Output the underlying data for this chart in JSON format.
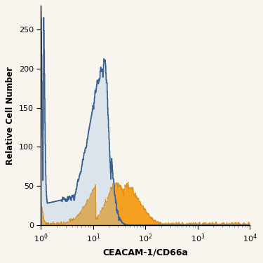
{
  "title": "",
  "xlabel": "CEACAM-1/CD66a",
  "ylabel": "Relative Cell Number",
  "xlim": [
    1,
    10000
  ],
  "ylim": [
    0,
    280
  ],
  "yticks": [
    0,
    50,
    100,
    150,
    200,
    250
  ],
  "background_color": "#f8f4ee",
  "blue_fill_color": "#a8c8e8",
  "blue_edge_color": "#3a6090",
  "orange_fill_color": "#f5a020",
  "orange_edge_color": "#d08000"
}
